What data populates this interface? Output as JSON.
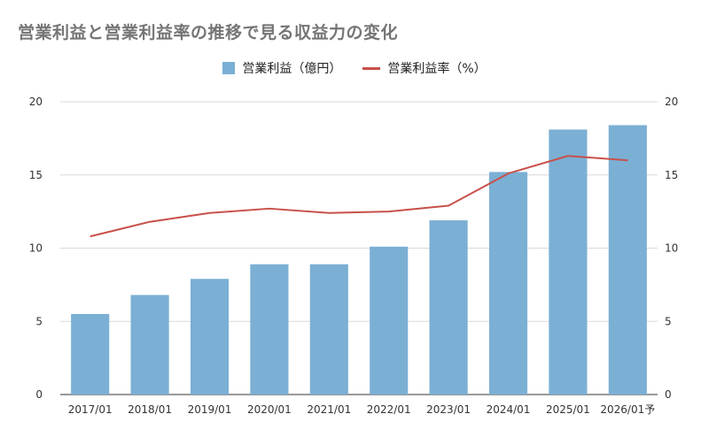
{
  "chart_data": {
    "type": "bar",
    "title": "営業利益と営業利益率の推移で見る収益力の変化",
    "categories": [
      "2017/01",
      "2018/01",
      "2019/01",
      "2020/01",
      "2021/01",
      "2022/01",
      "2023/01",
      "2024/01",
      "2025/01",
      "2026/01予"
    ],
    "series": [
      {
        "name": "営業利益（億円）",
        "kind": "bar",
        "axis": "left",
        "color": "#7bafd4",
        "values": [
          5.5,
          6.8,
          7.9,
          8.9,
          8.9,
          10.1,
          11.9,
          15.2,
          18.1,
          18.4
        ]
      },
      {
        "name": "営業利益率（%）",
        "kind": "line",
        "axis": "right",
        "color": "#c8504a",
        "values": [
          10.8,
          11.8,
          12.4,
          12.7,
          12.4,
          12.5,
          12.9,
          15.1,
          16.3,
          16.0
        ]
      }
    ],
    "ylim": [
      0,
      20
    ],
    "y2lim": [
      0,
      20
    ],
    "yticks": [
      "0",
      "5",
      "10",
      "15",
      "20"
    ],
    "y2ticks": [
      "0",
      "5",
      "10",
      "15",
      "20"
    ],
    "grid": true,
    "legend": "top-center",
    "xlabel": "",
    "ylabel": "",
    "y2label": ""
  }
}
